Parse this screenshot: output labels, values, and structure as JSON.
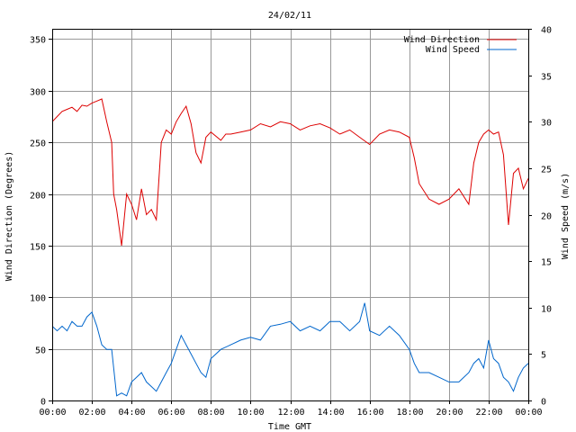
{
  "chart_data": {
    "type": "line",
    "title": "24/02/11",
    "xlabel": "Time GMT",
    "ylabel_left": "Wind Direction (Degrees)",
    "ylabel_right": "Wind Speed (m/s)",
    "x_ticks": [
      "00:00",
      "02:00",
      "04:00",
      "06:00",
      "08:00",
      "10:00",
      "12:00",
      "14:00",
      "16:00",
      "18:00",
      "20:00",
      "22:00",
      "00:00"
    ],
    "xlim_hours": [
      0,
      24
    ],
    "ylim_left": [
      0,
      360
    ],
    "yticks_left": [
      0,
      50,
      100,
      150,
      200,
      250,
      300,
      350
    ],
    "ylim_right": [
      0,
      40
    ],
    "yticks_right": [
      0,
      5,
      10,
      15,
      20,
      25,
      30,
      35,
      40
    ],
    "grid": true,
    "legend_placement": "top-right",
    "series": [
      {
        "name": "Wind Direction",
        "axis": "left",
        "color": "#dd0000",
        "x": [
          0,
          0.25,
          0.5,
          0.75,
          1,
          1.25,
          1.5,
          1.75,
          2,
          2.25,
          2.5,
          2.75,
          3,
          3.1,
          3.25,
          3.5,
          3.75,
          4,
          4.25,
          4.5,
          4.75,
          5,
          5.25,
          5.5,
          5.75,
          6,
          6.25,
          6.5,
          6.75,
          7,
          7.25,
          7.5,
          7.75,
          8,
          8.25,
          8.5,
          8.75,
          9,
          9.5,
          10,
          10.5,
          11,
          11.5,
          12,
          12.5,
          13,
          13.5,
          14,
          14.5,
          15,
          15.5,
          16,
          16.5,
          17,
          17.5,
          18,
          18.25,
          18.5,
          19,
          19.5,
          20,
          20.5,
          21,
          21.25,
          21.5,
          21.75,
          22,
          22.25,
          22.5,
          22.75,
          23,
          23.25,
          23.5,
          23.75,
          24
        ],
        "y": [
          270,
          275,
          280,
          282,
          284,
          280,
          286,
          285,
          288,
          290,
          292,
          270,
          250,
          200,
          185,
          150,
          200,
          190,
          175,
          205,
          180,
          185,
          175,
          250,
          262,
          258,
          270,
          278,
          285,
          268,
          240,
          230,
          255,
          260,
          256,
          252,
          258,
          258,
          260,
          262,
          268,
          265,
          270,
          268,
          262,
          266,
          268,
          264,
          258,
          262,
          255,
          248,
          258,
          262,
          260,
          255,
          235,
          210,
          195,
          190,
          195,
          205,
          190,
          230,
          250,
          258,
          262,
          258,
          260,
          238,
          170,
          220,
          225,
          205,
          215
        ]
      },
      {
        "name": "Wind Speed",
        "axis": "right",
        "color": "#0066cc",
        "x": [
          0,
          0.25,
          0.5,
          0.75,
          1,
          1.25,
          1.5,
          1.75,
          2,
          2.25,
          2.5,
          2.75,
          3,
          3.25,
          3.5,
          3.75,
          4,
          4.25,
          4.5,
          4.75,
          5,
          5.25,
          5.5,
          5.75,
          6,
          6.25,
          6.5,
          6.75,
          7,
          7.25,
          7.5,
          7.75,
          8,
          8.5,
          9,
          9.5,
          10,
          10.5,
          11,
          11.5,
          12,
          12.5,
          13,
          13.5,
          14,
          14.5,
          15,
          15.5,
          15.75,
          16,
          16.5,
          17,
          17.5,
          18,
          18.25,
          18.5,
          19,
          19.5,
          20,
          20.5,
          21,
          21.25,
          21.5,
          21.75,
          22,
          22.25,
          22.5,
          22.75,
          23,
          23.25,
          23.5,
          23.75,
          24
        ],
        "y": [
          8,
          7.5,
          8,
          7.5,
          8.5,
          8,
          8,
          9,
          9.5,
          8,
          6,
          5.5,
          5.5,
          0.5,
          0.8,
          0.5,
          2,
          2.5,
          3,
          2,
          1.5,
          1,
          2,
          3,
          4,
          5.5,
          7,
          6,
          5,
          4,
          3,
          2.5,
          4.5,
          5.5,
          6,
          6.5,
          6.8,
          6.5,
          8,
          8.2,
          8.5,
          7.5,
          8,
          7.5,
          8.5,
          8.5,
          7.5,
          8.5,
          10.5,
          7.5,
          7,
          8,
          7,
          5.5,
          4,
          3,
          3,
          2.5,
          2,
          2,
          3,
          4,
          4.5,
          3.5,
          6.5,
          4.5,
          4,
          2.5,
          2,
          1,
          2.5,
          3.5,
          4
        ]
      }
    ]
  }
}
